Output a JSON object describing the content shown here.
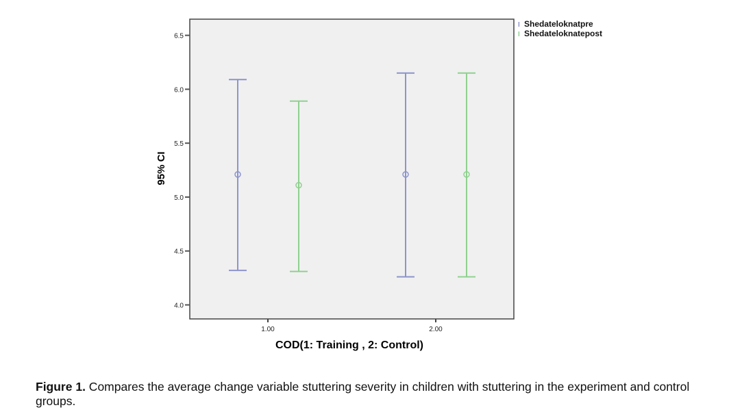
{
  "chart_data": {
    "type": "errorbar",
    "title": "",
    "xlabel": "COD(1: Training , 2: Control)",
    "ylabel": "95% CI",
    "ylim": [
      3.87,
      6.65
    ],
    "yticks": [
      4.0,
      4.5,
      5.0,
      5.5,
      6.0,
      6.5
    ],
    "ytick_labels": [
      "4.0",
      "4.5",
      "5.0",
      "5.5",
      "6.0",
      "6.5"
    ],
    "categories": [
      "1.00",
      "2.00"
    ],
    "legend_position": "top-right-outside",
    "series": [
      {
        "name": "Shedateloknatpre",
        "color": "#8c94cc",
        "mean": [
          5.21,
          5.21
        ],
        "lower": [
          4.32,
          4.26
        ],
        "upper": [
          6.09,
          6.15
        ]
      },
      {
        "name": "Shedateloknatepost",
        "color": "#8fd08f",
        "mean": [
          5.11,
          5.21
        ],
        "lower": [
          4.31,
          4.26
        ],
        "upper": [
          5.89,
          6.15
        ]
      }
    ]
  },
  "caption": {
    "label": "Figure 1.",
    "text": " Compares the average change variable stuttering severity in children with stuttering in the experiment and control groups."
  }
}
